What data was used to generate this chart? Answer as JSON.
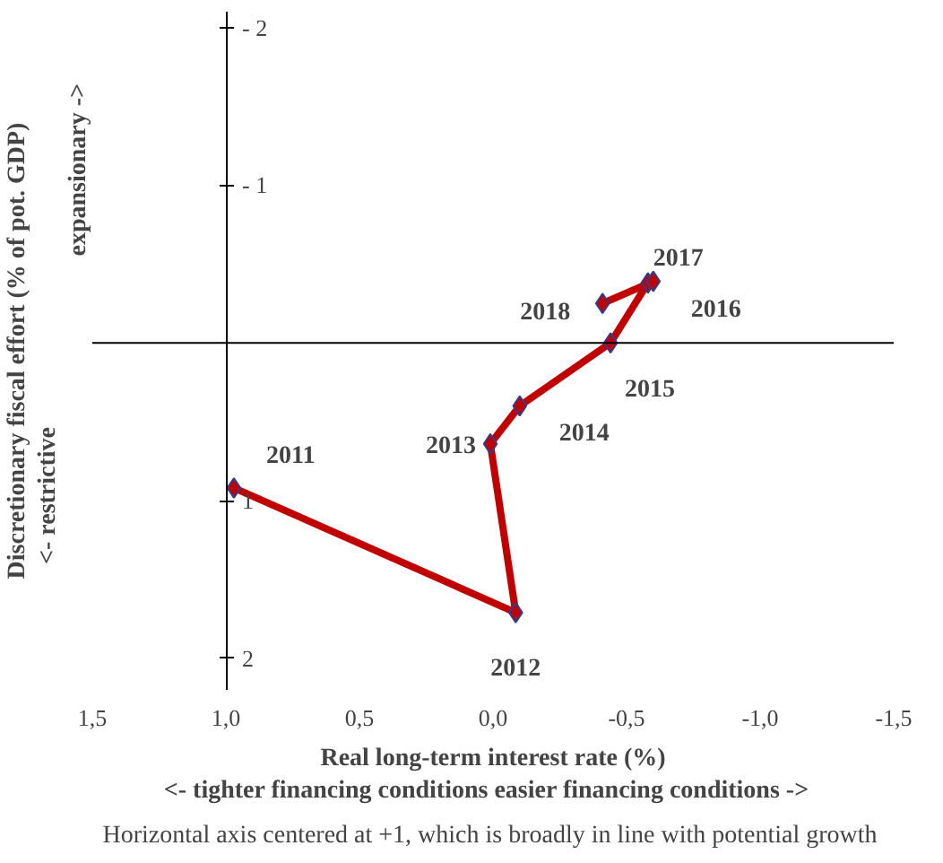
{
  "chart_data": {
    "type": "line",
    "xlabel": "Real long-term interest rate (%)\n<- tighter financing conditions   easier financing conditions ->",
    "ylabel": "Discretionary fiscal effort (% of pot. GDP)",
    "x": [
      0.97,
      -0.085,
      0.01,
      -0.1,
      -0.44,
      -0.58,
      -0.6,
      -0.41
    ],
    "series": [
      {
        "color": "#c00000",
        "values": [
          0.92,
          1.71,
          0.64,
          0.4,
          0.0,
          -0.38,
          -0.39,
          -0.25
        ]
      }
    ],
    "marker": "diamond",
    "line_style": "solid",
    "xlim": [
      1.5,
      -1.5
    ],
    "ylim": [
      2.2,
      -2.1
    ],
    "xticks": [
      {
        "value": 1.5,
        "label": "1,5"
      },
      {
        "value": 1.0,
        "label": "1,0"
      },
      {
        "value": 0.5,
        "label": "0,5"
      },
      {
        "value": 0.0,
        "label": "0,0"
      },
      {
        "value": -0.5,
        "label": "-0,5"
      },
      {
        "value": -1.0,
        "label": "-1,0"
      },
      {
        "value": -1.5,
        "label": "-1,5"
      }
    ],
    "yticks": [
      {
        "value": -2,
        "label": "- 2"
      },
      {
        "value": -1,
        "label": "- 1"
      },
      1,
      2
    ],
    "annotations": [
      {
        "text": "2011",
        "x": 0.97,
        "y": 0.92
      },
      {
        "text": "2012",
        "x": -0.085,
        "y": 1.71
      },
      {
        "text": "2013",
        "x": 0.01,
        "y": 0.64
      },
      {
        "text": "2014",
        "x": -0.1,
        "y": 0.4
      },
      {
        "text": "2015",
        "x": -0.44,
        "y": 0.0
      },
      {
        "text": "2016",
        "x": -0.58,
        "y": -0.38
      },
      {
        "text": "2017",
        "x": -0.6,
        "y": -0.39
      },
      {
        "text": "2018",
        "x": -0.41,
        "y": -0.25
      },
      "expansionary ->",
      "<- restrictive",
      "Horizontal axis centered  at +1, which is broadly in line with potential growth"
    ]
  }
}
